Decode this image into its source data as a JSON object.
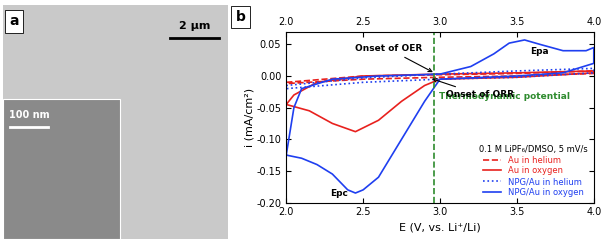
{
  "panel_a": {
    "label": "a",
    "scale_bar": "2 µm",
    "inset_scale_bar": "100 nm"
  },
  "panel_b_label": "b",
  "chart_data": {
    "type": "line",
    "x_label": "E (V, vs. Li⁺/Li)",
    "y_label": "i (mA/cm²)",
    "xlim": [
      2.0,
      4.0
    ],
    "ylim": [
      -0.2,
      0.07
    ],
    "xticks": [
      2.0,
      2.5,
      3.0,
      3.5,
      4.0
    ],
    "yticks": [
      {
        "value": -0.2,
        "label": "-0.20"
      },
      -0.15,
      {
        "value": -0.1,
        "label": "-0.10"
      },
      -0.05,
      {
        "value": 0.0,
        "label": "0.00"
      },
      0.05
    ],
    "legend": "lower right",
    "legend_title": "0.1 M LiPF₆/DMSO, 5 mV/s",
    "series": [
      {
        "name": "Au in helium",
        "color": "#e8211e",
        "line_style": "dashed",
        "x": [
          2.0,
          2.5,
          3.0,
          3.5,
          4.0,
          4.0,
          3.5,
          3.0,
          2.5,
          2.0,
          2.0
        ],
        "values": [
          -0.01,
          0.0,
          0.002,
          0.004,
          0.008,
          0.004,
          0.0,
          -0.002,
          -0.005,
          -0.012,
          -0.01
        ]
      },
      {
        "name": "Au in oxygen",
        "color": "#e8211e",
        "line_style": "solid",
        "x": [
          2.0,
          2.05,
          2.2,
          2.5,
          3.0,
          3.5,
          4.0,
          4.0,
          3.5,
          3.0,
          2.9,
          2.75,
          2.6,
          2.45,
          2.3,
          2.15,
          2.0
        ],
        "values": [
          -0.045,
          -0.03,
          -0.01,
          0.0,
          0.003,
          0.005,
          0.008,
          0.005,
          -0.002,
          -0.005,
          -0.015,
          -0.04,
          -0.07,
          -0.088,
          -0.075,
          -0.055,
          -0.045
        ]
      },
      {
        "name": "NPG/Au in helium",
        "color": "#1f3ff0",
        "line_style": "dotted",
        "x": [
          2.0,
          2.5,
          3.0,
          3.5,
          4.0,
          4.0,
          3.5,
          3.0,
          2.5,
          2.0,
          2.0
        ],
        "values": [
          -0.015,
          -0.003,
          0.003,
          0.008,
          0.012,
          0.005,
          -0.002,
          -0.005,
          -0.01,
          -0.02,
          -0.015
        ]
      },
      {
        "name": "NPG/Au in oxygen",
        "color": "#1f3ff0",
        "line_style": "solid",
        "x": [
          2.0,
          2.05,
          2.1,
          2.3,
          2.6,
          3.0,
          3.2,
          3.35,
          3.45,
          3.55,
          3.65,
          3.8,
          3.95,
          4.0,
          4.0,
          3.8,
          3.5,
          3.0,
          2.9,
          2.8,
          2.7,
          2.6,
          2.5,
          2.45,
          2.4,
          2.3,
          2.2,
          2.1,
          2.0
        ],
        "values": [
          -0.125,
          -0.05,
          -0.02,
          -0.005,
          0.0,
          0.003,
          0.015,
          0.035,
          0.052,
          0.057,
          0.05,
          0.04,
          0.04,
          0.045,
          0.02,
          0.005,
          0.0,
          -0.005,
          -0.04,
          -0.08,
          -0.12,
          -0.16,
          -0.18,
          -0.185,
          -0.18,
          -0.155,
          -0.14,
          -0.13,
          -0.125
        ]
      }
    ],
    "annotations": [
      {
        "text": "Onset of OER",
        "x": 2.97,
        "y": 0.004
      },
      {
        "text": "Onset of ORR",
        "x": 2.93,
        "y": -0.003
      },
      {
        "text": "Epa",
        "x": 3.55,
        "y": 0.057
      },
      {
        "text": "Epc",
        "x": 2.45,
        "y": -0.185
      }
    ],
    "reference_line": {
      "x": 2.96,
      "label": "Thermodynamic potential",
      "color": "#2e8b2e"
    }
  }
}
